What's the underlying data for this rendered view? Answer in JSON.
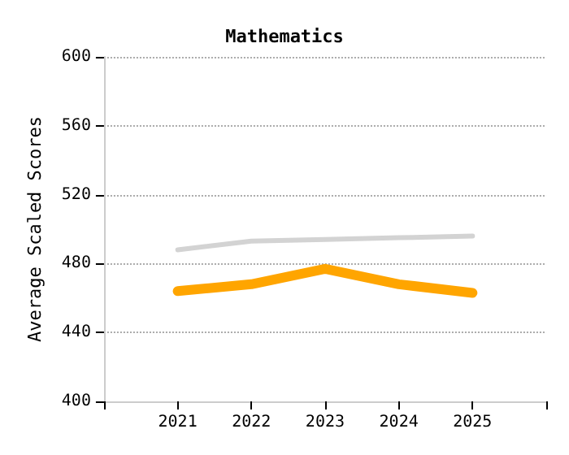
{
  "chart_data": {
    "type": "line",
    "title": "Mathematics",
    "ylabel": "Average Scaled Scores",
    "x": [
      2021,
      2022,
      2023,
      2024,
      2025
    ],
    "xlim": [
      2020,
      2026
    ],
    "xticks": [
      {
        "value": 2020,
        "label": null
      },
      2021,
      2022,
      2023,
      2024,
      2025,
      {
        "value": 2026,
        "label": null
      }
    ],
    "ylim": [
      400,
      600
    ],
    "yticks": [
      400,
      440,
      480,
      520,
      560,
      600
    ],
    "grid": "y",
    "marker": "none",
    "line_style": "solid",
    "series": [
      {
        "color": "#d3d3d3",
        "values": [
          488,
          493,
          494,
          495,
          496
        ]
      },
      {
        "color": "#ffa500",
        "values": [
          464,
          468,
          477,
          468,
          463
        ]
      }
    ]
  }
}
